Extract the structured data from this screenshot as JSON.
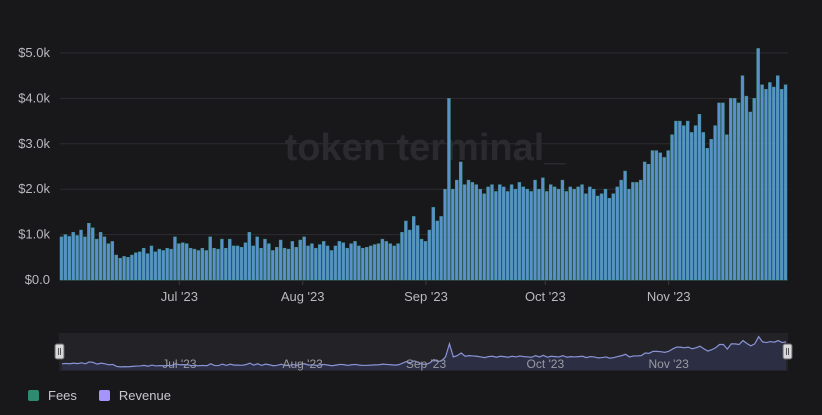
{
  "watermark": "token terminal_",
  "colors": {
    "background": "#18181b",
    "fees": "#2e8b6f",
    "revenue": "#a594f9",
    "bar_fill": "#5b8fd0",
    "bar_edge": "#3e9a8a",
    "grid": "#2c2c31",
    "navigator_line": "#8a93d6"
  },
  "legend": [
    {
      "name": "Fees",
      "color": "#2e8b6f"
    },
    {
      "name": "Revenue",
      "color": "#a594f9"
    }
  ],
  "chart_data": {
    "type": "bar",
    "x_start": "2023-06-01",
    "x_end": "2023-11-30",
    "x_ticks": [
      {
        "label": "Jul '23",
        "date": "2023-07-01"
      },
      {
        "label": "Aug '23",
        "date": "2023-08-01"
      },
      {
        "label": "Sep '23",
        "date": "2023-09-01"
      },
      {
        "label": "Oct '23",
        "date": "2023-10-01"
      },
      {
        "label": "Nov '23",
        "date": "2023-11-01"
      }
    ],
    "y_ticks": [
      {
        "label": "$0.0",
        "value": 0
      },
      {
        "label": "$1.0k",
        "value": 1000
      },
      {
        "label": "$2.0k",
        "value": 2000
      },
      {
        "label": "$3.0k",
        "value": 3000
      },
      {
        "label": "$4.0k",
        "value": 4000
      },
      {
        "label": "$5.0k",
        "value": 5000
      }
    ],
    "ylim": [
      0,
      5000
    ],
    "grid": true,
    "legend_position": "bottom-left",
    "series": [
      {
        "name": "Fees",
        "values": [
          950,
          1000,
          960,
          1050,
          980,
          1100,
          950,
          1250,
          1150,
          900,
          1050,
          950,
          800,
          850,
          550,
          480,
          520,
          500,
          550,
          600,
          620,
          700,
          580,
          750,
          620,
          680,
          650,
          700,
          680,
          950,
          800,
          820,
          800,
          700,
          680,
          650,
          700,
          650,
          950,
          700,
          680,
          900,
          700,
          900,
          750,
          750,
          720,
          820,
          1050,
          750,
          950,
          700,
          900,
          800,
          650,
          720,
          880,
          700,
          680,
          850,
          720,
          880,
          950,
          750,
          800,
          700,
          780,
          850,
          750,
          650,
          750,
          850,
          820,
          700,
          800,
          850,
          750,
          700,
          720,
          750,
          780,
          800,
          900,
          850,
          800,
          750,
          800,
          1050,
          1300,
          1100,
          1400,
          1200,
          900,
          850,
          1100,
          1600,
          1300,
          1400,
          2000,
          4000,
          2000,
          2200,
          2600,
          2100,
          2200,
          2150,
          2100,
          2000,
          1900,
          2050,
          2100,
          1950,
          2100,
          2050,
          1950,
          2100,
          2000,
          2150,
          2050,
          2000,
          1950,
          2200,
          2000,
          2250,
          1950,
          2100,
          2050,
          2000,
          2200,
          1950,
          2050,
          2000,
          2050,
          2100,
          1900,
          2050,
          2000,
          1850,
          1900,
          2000,
          1800,
          1900,
          2050,
          2200,
          2400,
          2000,
          2150,
          2150,
          2200,
          2600,
          2550,
          2850,
          2850,
          2800,
          2700,
          2850,
          3200,
          3500,
          3500,
          3400,
          3500,
          3250,
          3400,
          3650,
          3250,
          2900,
          3100,
          3400,
          3900,
          3900,
          3200,
          4000,
          4000,
          3900,
          4500,
          4050,
          3700,
          4000,
          5100,
          4300,
          4200,
          4350,
          4250,
          4500,
          4200,
          4300
        ]
      }
    ]
  }
}
